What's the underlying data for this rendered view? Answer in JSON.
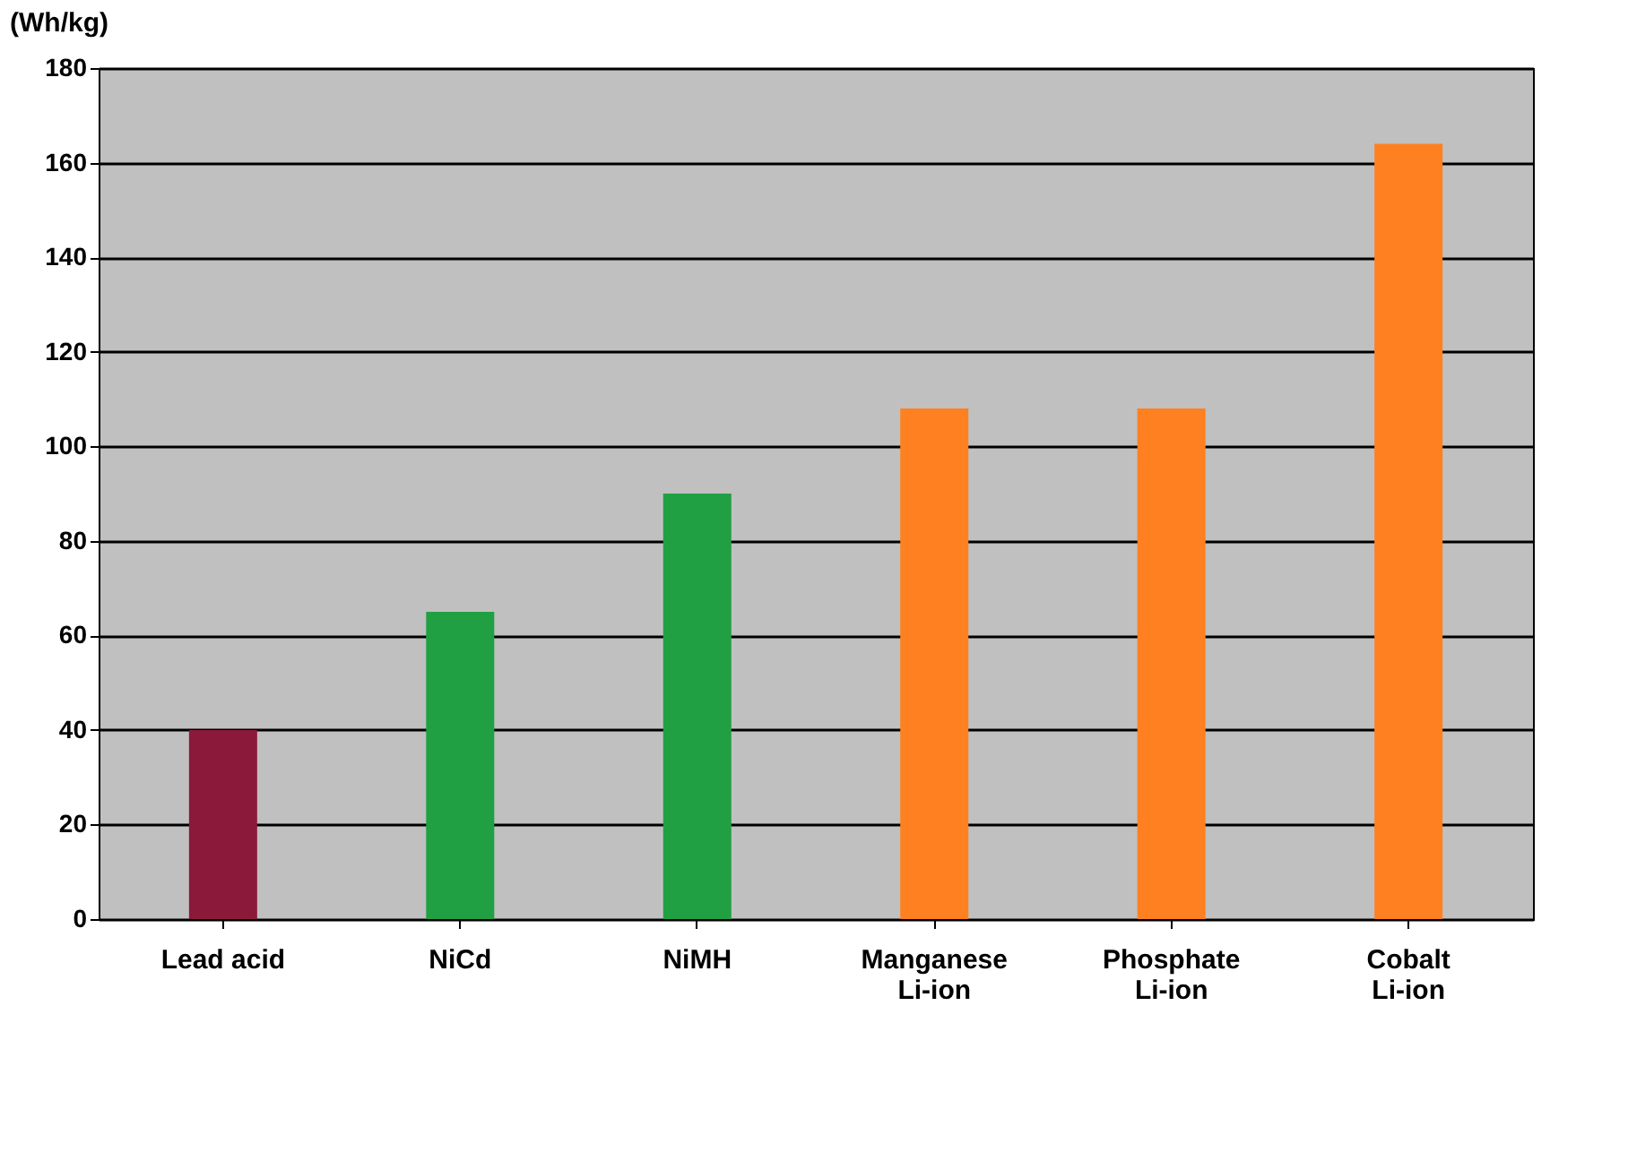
{
  "chart_data": {
    "type": "bar",
    "ylabel": "(Wh/kg)",
    "categories": [
      "Lead acid",
      "NiCd",
      "NiMH",
      "Manganese\nLi-ion",
      "Phosphate\nLi-ion",
      "Cobalt\nLi-ion"
    ],
    "values": [
      40,
      65,
      90,
      108,
      108,
      164
    ],
    "colors": [
      "#8b1a3a",
      "#20a043",
      "#20a043",
      "#ff8020",
      "#ff8020",
      "#ff8020"
    ],
    "ylim": [
      0,
      180
    ],
    "yticks": [
      0,
      20,
      40,
      60,
      80,
      100,
      120,
      140,
      160,
      180
    ],
    "grid": "y"
  }
}
